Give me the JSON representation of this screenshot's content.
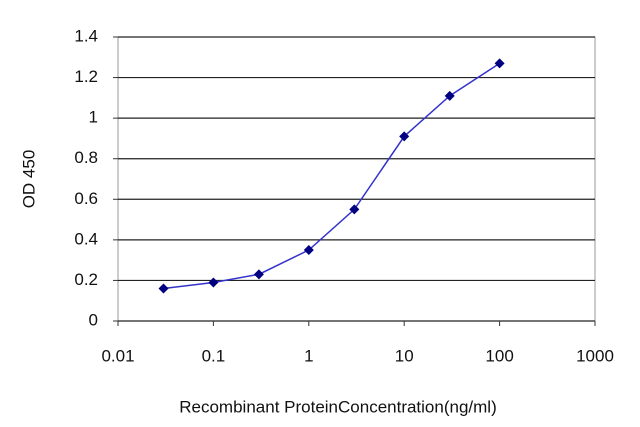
{
  "chart_data": {
    "type": "line",
    "xlabel": "Recombinant ProteinConcentration(ng/ml)",
    "ylabel": "OD 450",
    "x": [
      0.03,
      0.1,
      0.3,
      1,
      3,
      10,
      30,
      100
    ],
    "values": [
      0.16,
      0.19,
      0.23,
      0.35,
      0.55,
      0.91,
      1.11,
      1.27
    ],
    "color": "#3333cc",
    "marker_color": "#000080",
    "xscale": "log",
    "xlim": [
      0.01,
      1000
    ],
    "xticks": [
      0.01,
      0.1,
      1,
      10,
      100,
      1000
    ],
    "ylim": [
      0,
      1.4
    ],
    "yticks": [
      0,
      0.2,
      0.4,
      0.6,
      0.8,
      1,
      1.2,
      1.4
    ],
    "grid": true
  }
}
